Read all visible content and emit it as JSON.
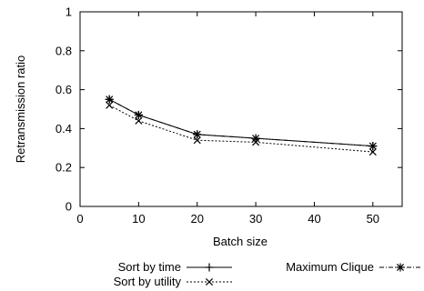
{
  "chart_data": {
    "type": "line",
    "xlabel": "Batch size",
    "ylabel": "Retransmission ratio",
    "xlim": [
      0,
      55
    ],
    "ylim": [
      0,
      1
    ],
    "xticks": [
      0,
      10,
      20,
      30,
      40,
      50
    ],
    "yticks": [
      0,
      0.2,
      0.4,
      0.6,
      0.8,
      1
    ],
    "xtick_labels": [
      "0",
      "10",
      "20",
      "30",
      "40",
      "50"
    ],
    "ytick_labels": [
      "0",
      "0.2",
      "0.4",
      "0.6",
      "0.8",
      "1"
    ],
    "grid": false,
    "legend_position": "bottom",
    "x": [
      5,
      10,
      20,
      30,
      50
    ],
    "series": [
      {
        "name": "Sort by time",
        "marker": "plus",
        "dash": "solid",
        "values": [
          0.55,
          0.47,
          0.37,
          0.35,
          0.31
        ]
      },
      {
        "name": "Sort by utility",
        "marker": "x",
        "dash": "dotted",
        "values": [
          0.52,
          0.44,
          0.34,
          0.33,
          0.28
        ]
      },
      {
        "name": "Maximum Clique",
        "marker": "star",
        "dash": "dashdot",
        "values": [
          0.55,
          0.47,
          0.37,
          0.35,
          0.31
        ]
      }
    ]
  }
}
